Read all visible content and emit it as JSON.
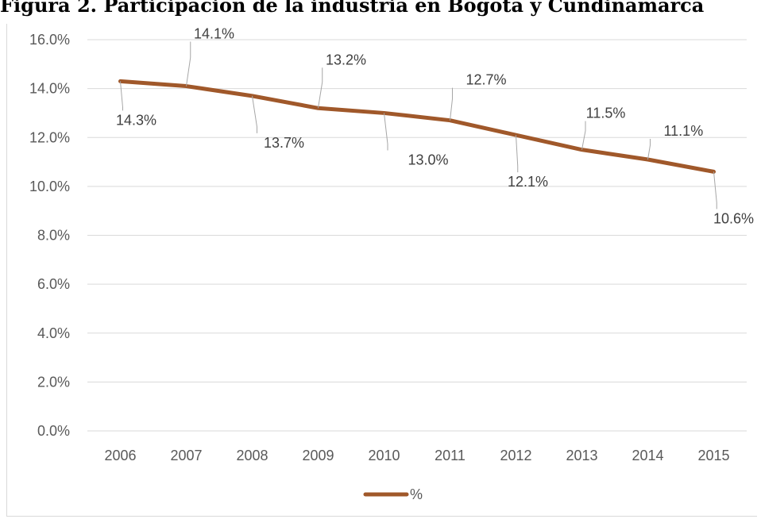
{
  "title": "Figura 2. Participación de la industria en Bogotá y Cundinamarca",
  "chart_data": {
    "type": "line",
    "title": "Figura 2. Participación de la industria en Bogotá y Cundinamarca",
    "xlabel": "",
    "ylabel": "",
    "categories": [
      "2006",
      "2007",
      "2008",
      "2009",
      "2010",
      "2011",
      "2012",
      "2013",
      "2014",
      "2015"
    ],
    "y_ticks": [
      "0.0%",
      "2.0%",
      "4.0%",
      "6.0%",
      "8.0%",
      "10.0%",
      "12.0%",
      "14.0%",
      "16.0%"
    ],
    "ylim": [
      0,
      16
    ],
    "grid": true,
    "legend_position": "bottom",
    "series": [
      {
        "name": "%",
        "color": "#A0582A",
        "values": [
          14.3,
          14.1,
          13.7,
          13.2,
          13.0,
          12.7,
          12.1,
          11.5,
          11.1,
          10.6
        ],
        "labels": [
          "14.3%",
          "14.1%",
          "13.7%",
          "13.2%",
          "13.0%",
          "12.7%",
          "12.1%",
          "11.5%",
          "11.1%",
          "10.6%"
        ]
      }
    ]
  }
}
